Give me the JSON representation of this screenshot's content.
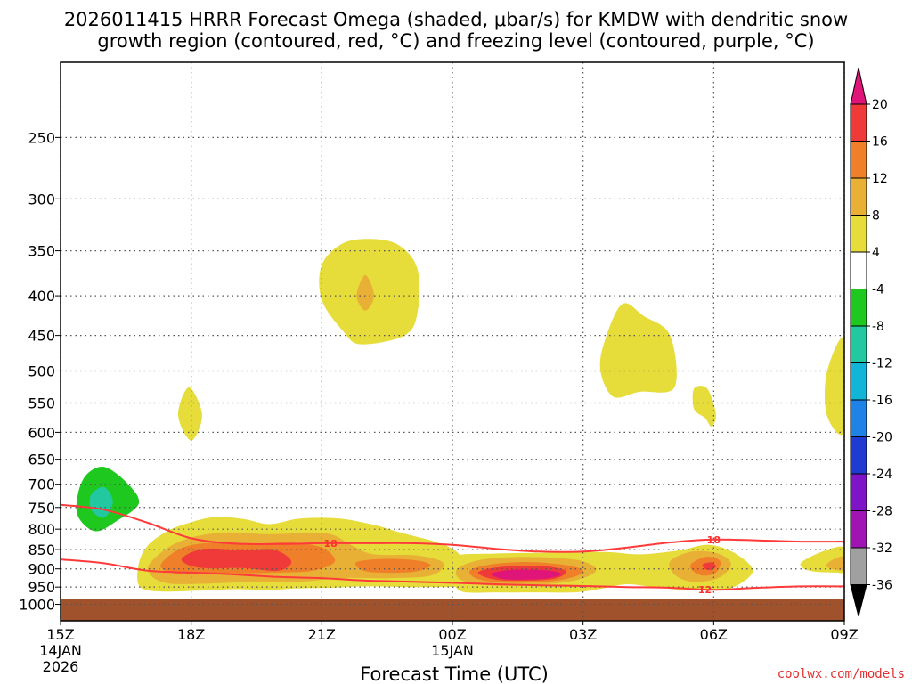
{
  "title_line1": "2026011415 HRRR Forecast Omega (shaded, μbar/s) for KMDW with dendritic snow",
  "title_line2": "growth region (contoured, red, °C) and freezing level (contoured, purple, °C)",
  "credit": "coolwx.com/models",
  "colors": {
    "contour_red": "#ff3a3a",
    "ground": "#a0522d",
    "frame": "#000000"
  },
  "chart_data": {
    "type": "heatmap",
    "xlabel": "Forecast Time (UTC)",
    "ylabel": "",
    "x_hours_range": [
      15,
      33
    ],
    "y_pressure_range_hPa": [
      1050,
      200
    ],
    "x_ticks": [
      {
        "hour": 15,
        "label": "15Z",
        "sub1": "14JAN",
        "sub2": "2026"
      },
      {
        "hour": 18,
        "label": "18Z"
      },
      {
        "hour": 21,
        "label": "21Z"
      },
      {
        "hour": 24,
        "label": "00Z",
        "sub1": "15JAN"
      },
      {
        "hour": 27,
        "label": "03Z"
      },
      {
        "hour": 30,
        "label": "06Z"
      },
      {
        "hour": 33,
        "label": "09Z"
      }
    ],
    "y_ticks": [
      250,
      300,
      350,
      400,
      450,
      500,
      550,
      600,
      650,
      700,
      750,
      800,
      850,
      900,
      950,
      1000
    ],
    "colorbar": {
      "ticks": [
        "20",
        "16",
        "12",
        "8",
        "4",
        "-4",
        "-8",
        "-12",
        "-16",
        "-20",
        "-24",
        "-28",
        "-32",
        "-36"
      ],
      "colors": [
        "#e0157a",
        "#f03a3a",
        "#f07f2a",
        "#e8b035",
        "#e6dc3a",
        "#ffffff",
        "#1ec81e",
        "#22c8a0",
        "#12b4d8",
        "#1e82e6",
        "#1e3cd2",
        "#7d14c8",
        "#a014b4",
        "#a0a0a0",
        "#000000"
      ]
    },
    "omega_regions": [
      {
        "name": "upper-yellow-blob",
        "value": 4,
        "color": "#e6dc3a",
        "points": [
          [
            21.0,
            365
          ],
          [
            21.5,
            342
          ],
          [
            22.2,
            338
          ],
          [
            22.8,
            345
          ],
          [
            23.2,
            370
          ],
          [
            23.2,
            420
          ],
          [
            22.9,
            450
          ],
          [
            21.9,
            462
          ],
          [
            21.5,
            445
          ],
          [
            21.0,
            405
          ]
        ]
      },
      {
        "name": "upper-orange-core",
        "value": 8,
        "color": "#e8b035",
        "points": [
          [
            22.0,
            376
          ],
          [
            22.2,
            400
          ],
          [
            22.0,
            418
          ],
          [
            21.8,
            400
          ]
        ]
      },
      {
        "name": "mid-yellow-blob-0330",
        "value": 4,
        "color": "#e6dc3a",
        "points": [
          [
            27.5,
            457
          ],
          [
            27.9,
            410
          ],
          [
            28.4,
            425
          ],
          [
            29.0,
            450
          ],
          [
            29.1,
            525
          ],
          [
            28.3,
            532
          ],
          [
            27.7,
            540
          ],
          [
            27.4,
            500
          ]
        ]
      },
      {
        "name": "mid-small-yellow-0530",
        "value": 4,
        "color": "#e6dc3a",
        "points": [
          [
            29.55,
            527
          ],
          [
            29.85,
            527
          ],
          [
            30.05,
            568
          ],
          [
            29.95,
            590
          ],
          [
            29.8,
            575
          ],
          [
            29.55,
            560
          ]
        ]
      },
      {
        "name": "right-edge-yellow-mid",
        "value": 4,
        "color": "#e6dc3a",
        "points": [
          [
            33.0,
            455
          ],
          [
            32.6,
            502
          ],
          [
            32.6,
            570
          ],
          [
            33.0,
            597
          ]
        ]
      },
      {
        "name": "small-yellow-1800",
        "value": 4,
        "color": "#e6dc3a",
        "points": [
          [
            17.95,
            525
          ],
          [
            18.25,
            570
          ],
          [
            18.0,
            615
          ],
          [
            17.7,
            570
          ]
        ]
      },
      {
        "name": "green-sinking-blob",
        "value": -8,
        "color": "#1ec81e",
        "points": [
          [
            15.4,
            720
          ],
          [
            15.6,
            680
          ],
          [
            16.0,
            665
          ],
          [
            16.5,
            695
          ],
          [
            16.8,
            740
          ],
          [
            16.3,
            780
          ],
          [
            15.8,
            805
          ],
          [
            15.4,
            770
          ]
        ]
      },
      {
        "name": "teal-sinking-core",
        "value": -12,
        "color": "#22c8a0",
        "points": [
          [
            15.7,
            722
          ],
          [
            16.0,
            706
          ],
          [
            16.2,
            737
          ],
          [
            16.0,
            773
          ],
          [
            15.7,
            755
          ]
        ]
      },
      {
        "name": "low-level-yellow-band-left",
        "value": 4,
        "color": "#e6dc3a",
        "points": [
          [
            16.8,
            885
          ],
          [
            17.0,
            840
          ],
          [
            17.4,
            808
          ],
          [
            17.8,
            790
          ],
          [
            18.5,
            772
          ],
          [
            19.2,
            776
          ],
          [
            19.8,
            788
          ],
          [
            20.5,
            775
          ],
          [
            21.4,
            775
          ],
          [
            22.2,
            790
          ],
          [
            22.8,
            808
          ],
          [
            23.6,
            830
          ],
          [
            24.0,
            848
          ],
          [
            24.2,
            872
          ],
          [
            24.3,
            940
          ],
          [
            23.4,
            950
          ],
          [
            22.0,
            948
          ],
          [
            21.2,
            952
          ],
          [
            20.4,
            954
          ],
          [
            19.8,
            958
          ],
          [
            19.0,
            956
          ],
          [
            18.2,
            960
          ],
          [
            17.2,
            962
          ],
          [
            16.8,
            945
          ]
        ]
      },
      {
        "name": "low-level-yellow-band-right",
        "value": 4,
        "color": "#e6dc3a",
        "points": [
          [
            24.0,
            868
          ],
          [
            25.0,
            860
          ],
          [
            26.2,
            858
          ],
          [
            27.5,
            856
          ],
          [
            28.3,
            862
          ],
          [
            29.2,
            852
          ],
          [
            29.9,
            838
          ],
          [
            30.5,
            860
          ],
          [
            30.9,
            905
          ],
          [
            30.5,
            948
          ],
          [
            30.0,
            958
          ],
          [
            29.3,
            958
          ],
          [
            28.6,
            950
          ],
          [
            28.0,
            942
          ],
          [
            27.4,
            955
          ],
          [
            26.8,
            965
          ],
          [
            26.0,
            965
          ],
          [
            25.0,
            965
          ],
          [
            24.2,
            962
          ],
          [
            24.0,
            920
          ]
        ]
      },
      {
        "name": "right-edge-yellow-low",
        "value": 4,
        "color": "#e6dc3a",
        "points": [
          [
            33.0,
            845
          ],
          [
            32.5,
            855
          ],
          [
            32.0,
            885
          ],
          [
            32.2,
            905
          ],
          [
            32.8,
            910
          ],
          [
            33.0,
            905
          ]
        ]
      },
      {
        "name": "orange-1700-2130",
        "value": 8,
        "color": "#e8b035",
        "points": [
          [
            17.0,
            900
          ],
          [
            17.4,
            850
          ],
          [
            18.0,
            820
          ],
          [
            18.8,
            808
          ],
          [
            19.7,
            812
          ],
          [
            20.5,
            810
          ],
          [
            21.2,
            812
          ],
          [
            21.7,
            840
          ],
          [
            22.2,
            862
          ],
          [
            23.2,
            865
          ],
          [
            23.8,
            885
          ],
          [
            23.5,
            918
          ],
          [
            22.5,
            925
          ],
          [
            21.5,
            925
          ],
          [
            20.5,
            935
          ],
          [
            19.4,
            935
          ],
          [
            18.4,
            940
          ],
          [
            17.4,
            938
          ]
        ]
      },
      {
        "name": "orange-1730-2100",
        "value": 12,
        "color": "#f07f2a",
        "points": [
          [
            17.3,
            890
          ],
          [
            17.8,
            845
          ],
          [
            18.6,
            832
          ],
          [
            19.5,
            835
          ],
          [
            20.3,
            832
          ],
          [
            21.0,
            845
          ],
          [
            21.3,
            880
          ],
          [
            20.8,
            905
          ],
          [
            20.0,
            910
          ],
          [
            19.2,
            912
          ],
          [
            18.3,
            915
          ],
          [
            17.6,
            912
          ]
        ]
      },
      {
        "name": "red-core-1800-2000",
        "value": 16,
        "color": "#f03a3a",
        "points": [
          [
            17.8,
            870
          ],
          [
            18.3,
            848
          ],
          [
            19.2,
            852
          ],
          [
            19.9,
            850
          ],
          [
            20.3,
            880
          ],
          [
            20.0,
            905
          ],
          [
            19.2,
            898
          ],
          [
            18.3,
            898
          ],
          [
            17.9,
            888
          ]
        ]
      },
      {
        "name": "orange-2130-2330",
        "value": 12,
        "color": "#f07f2a",
        "points": [
          [
            21.8,
            882
          ],
          [
            22.4,
            874
          ],
          [
            23.2,
            878
          ],
          [
            23.5,
            892
          ],
          [
            23.1,
            908
          ],
          [
            22.3,
            910
          ],
          [
            21.9,
            902
          ]
        ]
      },
      {
        "name": "orange-0000-0230-outer",
        "value": 8,
        "color": "#e8b035",
        "points": [
          [
            24.1,
            902
          ],
          [
            24.5,
            880
          ],
          [
            25.2,
            870
          ],
          [
            26.2,
            870
          ],
          [
            27.0,
            880
          ],
          [
            27.3,
            905
          ],
          [
            26.8,
            932
          ],
          [
            25.8,
            945
          ],
          [
            24.8,
            945
          ],
          [
            24.2,
            930
          ]
        ]
      },
      {
        "name": "orange-0000-0230-inner",
        "value": 12,
        "color": "#f07f2a",
        "points": [
          [
            24.4,
            905
          ],
          [
            24.9,
            888
          ],
          [
            25.8,
            882
          ],
          [
            26.7,
            892
          ],
          [
            27.0,
            910
          ],
          [
            26.4,
            932
          ],
          [
            25.3,
            938
          ],
          [
            24.6,
            928
          ]
        ]
      },
      {
        "name": "red-0030-0230",
        "value": 16,
        "color": "#f03a3a",
        "points": [
          [
            24.6,
            908
          ],
          [
            25.1,
            895
          ],
          [
            26.0,
            892
          ],
          [
            26.6,
            905
          ],
          [
            26.3,
            928
          ],
          [
            25.3,
            932
          ],
          [
            24.8,
            924
          ]
        ]
      },
      {
        "name": "magenta-0100-0200",
        "value": 20,
        "color": "#e0157a",
        "points": [
          [
            24.9,
            912
          ],
          [
            25.4,
            902
          ],
          [
            26.2,
            904
          ],
          [
            26.5,
            915
          ],
          [
            26.1,
            927
          ],
          [
            25.3,
            929
          ],
          [
            25.0,
            922
          ]
        ]
      },
      {
        "name": "orange-0430-0600-outer",
        "value": 8,
        "color": "#e8b035",
        "points": [
          [
            29.0,
            880
          ],
          [
            29.5,
            855
          ],
          [
            30.1,
            860
          ],
          [
            30.4,
            888
          ],
          [
            30.1,
            925
          ],
          [
            29.5,
            935
          ],
          [
            29.1,
            915
          ]
        ]
      },
      {
        "name": "orange-0430-0600-inner",
        "value": 12,
        "color": "#f07f2a",
        "points": [
          [
            29.5,
            885
          ],
          [
            29.85,
            868
          ],
          [
            30.15,
            880
          ],
          [
            30.05,
            910
          ],
          [
            29.75,
            918
          ],
          [
            29.5,
            903
          ]
        ]
      },
      {
        "name": "red-0500",
        "value": 16,
        "color": "#f03a3a",
        "points": [
          [
            29.75,
            888
          ],
          [
            29.95,
            883
          ],
          [
            30.05,
            893
          ],
          [
            29.95,
            903
          ],
          [
            29.8,
            900
          ]
        ]
      },
      {
        "name": "right-edge-orange-low",
        "value": 8,
        "color": "#e8b035",
        "points": [
          [
            33.0,
            868
          ],
          [
            32.7,
            878
          ],
          [
            32.6,
            895
          ],
          [
            33.0,
            903
          ]
        ]
      }
    ],
    "contours": [
      {
        "name": "dendritic-minus18",
        "label": "18",
        "points": [
          [
            15.0,
            744
          ],
          [
            16.0,
            755
          ],
          [
            17.0,
            785
          ],
          [
            18.0,
            822
          ],
          [
            19.0,
            835
          ],
          [
            20.0,
            836
          ],
          [
            21.0,
            834
          ],
          [
            22.0,
            834
          ],
          [
            23.0,
            834
          ],
          [
            24.0,
            838
          ],
          [
            25.0,
            848
          ],
          [
            26.0,
            855
          ],
          [
            27.0,
            855
          ],
          [
            28.0,
            845
          ],
          [
            29.0,
            832
          ],
          [
            30.0,
            825
          ],
          [
            31.0,
            827
          ],
          [
            32.0,
            830
          ],
          [
            33.0,
            830
          ]
        ],
        "labels_at_hours": [
          21.2,
          30.0
        ]
      },
      {
        "name": "dendritic-minus12",
        "label": "12",
        "points": [
          [
            15.0,
            875
          ],
          [
            16.0,
            885
          ],
          [
            17.0,
            905
          ],
          [
            18.0,
            910
          ],
          [
            19.0,
            915
          ],
          [
            20.0,
            922
          ],
          [
            21.0,
            925
          ],
          [
            22.0,
            932
          ],
          [
            23.0,
            935
          ],
          [
            24.0,
            938
          ],
          [
            25.0,
            942
          ],
          [
            26.0,
            945
          ],
          [
            27.0,
            947
          ],
          [
            28.0,
            950
          ],
          [
            29.0,
            952
          ],
          [
            30.0,
            958
          ],
          [
            31.0,
            952
          ],
          [
            32.0,
            948
          ],
          [
            33.0,
            948
          ]
        ],
        "labels_at_hours": [
          29.8
        ]
      }
    ],
    "ground_pressure_hPa": 985
  }
}
